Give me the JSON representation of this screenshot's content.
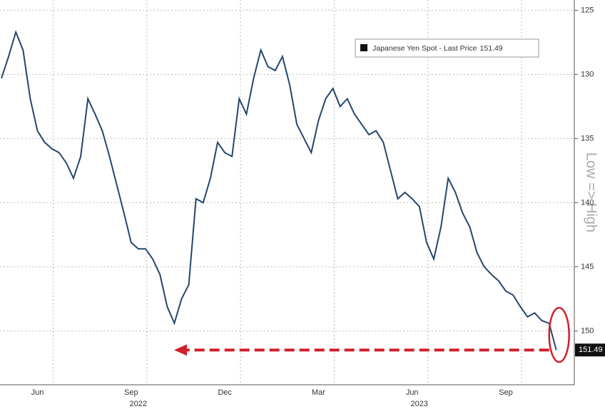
{
  "chart_data": {
    "type": "line",
    "series": [
      {
        "name": "Japanese Yen Spot - Last Price",
        "color": "#24476e",
        "values": [
          130.3,
          128.6,
          126.7,
          128.1,
          131.9,
          134.4,
          135.3,
          135.8,
          136.1,
          136.9,
          138.1,
          136.4,
          131.9,
          133.1,
          134.4,
          136.4,
          138.6,
          140.8,
          143.1,
          143.6,
          143.6,
          144.4,
          145.6,
          148.1,
          149.4,
          147.5,
          146.4,
          139.7,
          140,
          138.1,
          135.3,
          136.1,
          136.4,
          131.9,
          133.1,
          130.3,
          128.1,
          129.4,
          129.7,
          128.6,
          130.8,
          133.9,
          135,
          136.1,
          133.6,
          131.9,
          131.1,
          132.5,
          131.9,
          133.1,
          133.9,
          134.7,
          134.4,
          135.3,
          137.5,
          139.7,
          139.2,
          139.7,
          140.3,
          143.1,
          144.4,
          141.9,
          138.1,
          139.2,
          140.8,
          141.9,
          143.9,
          145,
          145.6,
          146.1,
          146.9,
          147.2,
          148.1,
          148.9,
          148.6,
          149.2,
          149.4,
          151.49
        ]
      }
    ],
    "categories": [
      null,
      null,
      null,
      null,
      null,
      "Jun",
      null,
      null,
      null,
      null,
      null,
      null,
      null,
      null,
      null,
      null,
      null,
      null,
      "Sep",
      null,
      null,
      null,
      null,
      null,
      null,
      null,
      null,
      null,
      null,
      null,
      null,
      "Dec",
      null,
      null,
      null,
      null,
      null,
      null,
      null,
      null,
      null,
      null,
      null,
      null,
      "Mar",
      null,
      null,
      null,
      null,
      null,
      null,
      null,
      null,
      null,
      null,
      null,
      null,
      "Jun",
      null,
      null,
      null,
      null,
      null,
      null,
      null,
      null,
      null,
      null,
      null,
      null,
      "Sep",
      null,
      null,
      null,
      null,
      null,
      null,
      null
    ],
    "category_years": [
      null,
      null,
      null,
      null,
      null,
      null,
      null,
      null,
      null,
      null,
      null,
      null,
      null,
      null,
      null,
      null,
      null,
      null,
      "2022",
      null,
      null,
      null,
      null,
      null,
      null,
      null,
      null,
      null,
      null,
      null,
      null,
      null,
      null,
      null,
      null,
      null,
      null,
      null,
      null,
      null,
      null,
      null,
      null,
      null,
      null,
      null,
      null,
      null,
      null,
      null,
      null,
      null,
      null,
      null,
      null,
      null,
      null,
      "2023",
      null,
      null,
      null,
      null,
      null,
      null,
      null,
      null,
      null,
      null,
      null,
      null,
      null,
      null,
      null,
      null,
      null,
      null,
      null,
      null
    ],
    "ylim": [
      124.2,
      154.2
    ],
    "y_inverted": true,
    "yticks": [
      125,
      130,
      135,
      140,
      145,
      150
    ],
    "y_axis_label": "Low => High",
    "last_price": 151.49,
    "grid": true
  }
}
